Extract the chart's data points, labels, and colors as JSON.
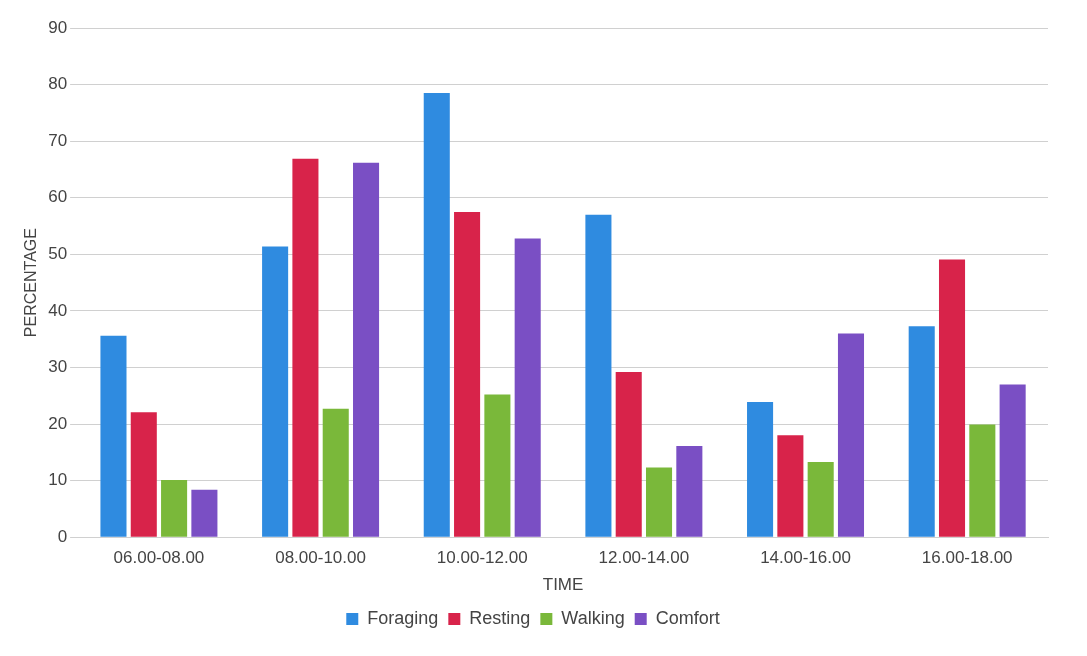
{
  "chart_data": {
    "type": "bar",
    "xlabel": "TIME",
    "ylabel": "PERCENTAGE",
    "categories": [
      "06.00-08.00",
      "08.00-10.00",
      "10.00-12.00",
      "12.00-14.00",
      "14.00-16.00",
      "16.00-18.00"
    ],
    "series": [
      {
        "name": "Foraging",
        "color": "#2f8be0",
        "values": [
          35.6,
          51.4,
          78.5,
          57.0,
          23.9,
          37.3
        ]
      },
      {
        "name": "Resting",
        "color": "#d8234a",
        "values": [
          22.1,
          66.9,
          57.5,
          29.2,
          18.0,
          49.1
        ]
      },
      {
        "name": "Walking",
        "color": "#7ab83a",
        "values": [
          10.1,
          22.7,
          25.2,
          12.3,
          13.3,
          19.9
        ]
      },
      {
        "name": "Comfort",
        "color": "#7a4fc4",
        "values": [
          8.4,
          66.2,
          52.8,
          16.1,
          36.0,
          27.0
        ]
      }
    ],
    "ylim": [
      0,
      90
    ],
    "yticks": [
      0,
      10,
      20,
      30,
      40,
      50,
      60,
      70,
      80,
      90
    ],
    "grid": "y",
    "legend": "bottom"
  }
}
